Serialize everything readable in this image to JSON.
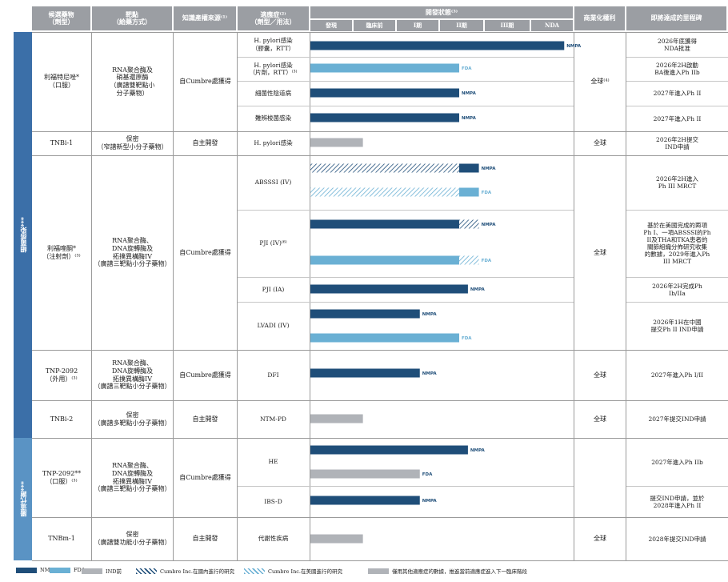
{
  "colors": {
    "nmpa": "#1f4e79",
    "fda": "#6ab0d4",
    "ind_pre": "#b0b3b8",
    "header": "#9b9ea3",
    "band_antibacterial": "#3b6fa8",
    "band_metabolic": "#5a93c4"
  },
  "headers": {
    "candidate": "候選藥物\n（劑型）",
    "target": "靶點\n（給藥方式）",
    "ip_source": "知識產權來源⁽¹⁾",
    "indication": "適應症⁽²⁾\n（劑型／用法）",
    "dev_status": "開發狀態⁽³⁾",
    "commercial": "商業化權利",
    "milestone": "即將達成的里程碑",
    "stages": [
      "發現",
      "臨床前",
      "I期",
      "II期",
      "III期",
      "NDA"
    ]
  },
  "bands": [
    {
      "label": "細菌感染***"
    },
    {
      "label": "腸道代謝***"
    }
  ],
  "rows": [
    {
      "candidate": "利福特尼唑*\n（口服）",
      "target": "RNA聚合酶及\n硝基還原酶\n（廣譜雙靶點小\n分子藥物）",
      "ip": "自Cumbre處獲得",
      "commercial": "全球⁽⁴⁾"
    },
    {
      "candidate": "TNBi-1",
      "target": "保密\n（窄譜新型小分子藥物）",
      "ip": "自主開發",
      "commercial": "全球"
    },
    {
      "candidate": "利福喹酮*\n（注射劑）⁽³⁾",
      "target": "RNA聚合酶、\nDNA旋轉酶及\n拓撲異構酶IV\n（廣譜三靶點小分子藥物）",
      "ip": "自Cumbre處獲得",
      "commercial": "全球"
    },
    {
      "candidate": "TNP-2092\n（外用）⁽³⁾",
      "target": "RNA聚合酶、\nDNA旋轉酶及\n拓撲異構酶IV\n（廣譜三靶點小分子藥物）",
      "ip": "自Cumbre處獲得",
      "commercial": "全球"
    },
    {
      "candidate": "TNBi-2",
      "target": "保密\n（廣譜多靶點小分子藥物）",
      "ip": "自主開發",
      "commercial": "全球"
    },
    {
      "candidate": "TNP-2092**\n（口服）⁽³⁾",
      "target": "RNA聚合酶、\nDNA旋轉酶及\n拓撲異構酶IV\n（廣譜三靶點小分子藥物）",
      "ip": "自Cumbre處獲得",
      "commercial": ""
    },
    {
      "candidate": "TNBm-1",
      "target": "保密\n（廣譜雙功能小分子藥物）",
      "ip": "自主開發",
      "commercial": "全球"
    }
  ],
  "indications": [
    {
      "label": "H. pylori感染\n（膠囊，RTT）"
    },
    {
      "label": "H. pylori感染\n（片劑，RTT）⁽³⁾"
    },
    {
      "label": "細菌性陰道病"
    },
    {
      "label": "難辨梭菌感染"
    },
    {
      "label": "H. pylori感染"
    },
    {
      "label": "ABSSSI (IV)"
    },
    {
      "label": "PJI (IV)⁽⁶⁾"
    },
    {
      "label": "PJI (IA)"
    },
    {
      "label": "LVADI (IV)"
    },
    {
      "label": "DFI"
    },
    {
      "label": "NTM-PD"
    },
    {
      "label": "HE"
    },
    {
      "label": "IBS-D"
    },
    {
      "label": "代謝性疾病"
    }
  ],
  "milestones": [
    {
      "label": "2026年底獲得\nNDA批准"
    },
    {
      "label": "2026年2H啟動\nBA後進入Ph IIb"
    },
    {
      "label": "2027年進入Ph II"
    },
    {
      "label": "2027年進入Ph II"
    },
    {
      "label": "2026年2H提交\nIND申請"
    },
    {
      "label": "2026年2H進入\nPh III MRCT"
    },
    {
      "label": "基於在美國完成的兩項\nPh I、一項ABSSSI的Ph\nII及THA和TKA患者的\n關節組織分佈研究收集\n的數據，2029年進入Ph\nIII MRCT"
    },
    {
      "label": "2026年2H完成Ph\nIb/IIa"
    },
    {
      "label": "2026年1H在中國\n提交Ph II IND申請"
    },
    {
      "label": "2027年進入Ph I/II"
    },
    {
      "label": "2027年提交IND申請"
    },
    {
      "label": "2027年進入Ph IIb"
    },
    {
      "label": "提交IND申請，並於\n2028年進入Ph II"
    },
    {
      "label": "2028年提交IND申請"
    }
  ],
  "chart_data": {
    "type": "bar",
    "orientation": "horizontal",
    "title": "開發狀態",
    "stages": [
      "發現",
      "臨床前",
      "I期",
      "II期",
      "III期",
      "NDA"
    ],
    "value_scale": "progress through development stages, 0 = start of 發現, 6 = end of NDA",
    "bars": [
      {
        "indication": "H. pylori感染（膠囊，RTT）",
        "segments": [
          {
            "start": 0,
            "end": 5.8,
            "style": "nmpa"
          }
        ],
        "label": "NMPA"
      },
      {
        "indication": "H. pylori感染（片劑，RTT）",
        "segments": [
          {
            "start": 0,
            "end": 3.4,
            "style": "fda"
          }
        ],
        "label": "FDA"
      },
      {
        "indication": "細菌性陰道病",
        "segments": [
          {
            "start": 0,
            "end": 3.4,
            "style": "nmpa"
          }
        ],
        "label": "NMPA"
      },
      {
        "indication": "難辨梭菌感染",
        "segments": [
          {
            "start": 0,
            "end": 3.4,
            "style": "nmpa"
          }
        ],
        "label": "NMPA"
      },
      {
        "indication": "H. pylori感染",
        "segments": [
          {
            "start": 0,
            "end": 1.2,
            "style": "ind_pre"
          }
        ],
        "label": ""
      },
      {
        "indication": "ABSSSI (IV)",
        "segments": [
          {
            "start": 0,
            "end": 3.4,
            "style": "hatch_cn"
          },
          {
            "start": 3.4,
            "end": 3.85,
            "style": "nmpa"
          }
        ],
        "label": "NMPA"
      },
      {
        "indication": "ABSSSI (IV)",
        "segments": [
          {
            "start": 0,
            "end": 3.4,
            "style": "hatch_us"
          },
          {
            "start": 3.4,
            "end": 3.85,
            "style": "fda"
          }
        ],
        "label": "FDA"
      },
      {
        "indication": "PJI (IV)",
        "segments": [
          {
            "start": 0,
            "end": 3.4,
            "style": "nmpa"
          },
          {
            "start": 3.4,
            "end": 3.85,
            "style": "hatch_cn"
          }
        ],
        "label": "NMPA"
      },
      {
        "indication": "PJI (IV)",
        "segments": [
          {
            "start": 0,
            "end": 3.4,
            "style": "fda"
          },
          {
            "start": 3.4,
            "end": 3.85,
            "style": "hatch_us"
          }
        ],
        "label": "FDA"
      },
      {
        "indication": "PJI (IA)",
        "segments": [
          {
            "start": 0,
            "end": 3.6,
            "style": "nmpa"
          }
        ],
        "label": "NMPA"
      },
      {
        "indication": "LVADI (IV)",
        "segments": [
          {
            "start": 0,
            "end": 2.5,
            "style": "nmpa"
          }
        ],
        "label": "NMPA"
      },
      {
        "indication": "LVADI (IV)",
        "segments": [
          {
            "start": 0,
            "end": 3.4,
            "style": "fda"
          }
        ],
        "label": "FDA"
      },
      {
        "indication": "DFI",
        "segments": [
          {
            "start": 0,
            "end": 2.5,
            "style": "nmpa"
          }
        ],
        "label": "NMPA"
      },
      {
        "indication": "NTM-PD",
        "segments": [
          {
            "start": 0,
            "end": 1.2,
            "style": "ind_pre"
          }
        ],
        "label": ""
      },
      {
        "indication": "HE",
        "segments": [
          {
            "start": 0,
            "end": 3.6,
            "style": "nmpa"
          }
        ],
        "label": "NMPA"
      },
      {
        "indication": "HE",
        "segments": [
          {
            "start": 0,
            "end": 2.5,
            "style": "ind_pre"
          }
        ],
        "label": "FDA"
      },
      {
        "indication": "IBS-D",
        "segments": [
          {
            "start": 0,
            "end": 2.5,
            "style": "nmpa"
          }
        ],
        "label": "NMPA"
      },
      {
        "indication": "代謝性疾病",
        "segments": [
          {
            "start": 0,
            "end": 1.2,
            "style": "ind_pre"
          }
        ],
        "label": ""
      }
    ]
  },
  "legend": [
    {
      "label": "NMPA",
      "style": "nmpa"
    },
    {
      "label": "FDA",
      "style": "fda"
    },
    {
      "label": "IND前",
      "style": "ind_pre"
    },
    {
      "label": "Cumbre Inc.在國內進行的研究",
      "style": "hatch_cn"
    },
    {
      "label": "Cumbre Inc.在美國進行的研究",
      "style": "hatch_us"
    },
    {
      "label": "僅用其他適應症的數據，推進當前適應症進入下一臨床階段",
      "style": "ind_pre"
    }
  ]
}
